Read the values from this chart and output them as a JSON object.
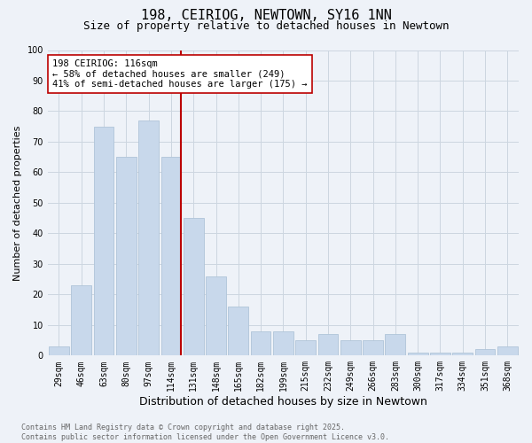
{
  "title": "198, CEIRIOG, NEWTOWN, SY16 1NN",
  "subtitle": "Size of property relative to detached houses in Newtown",
  "xlabel": "Distribution of detached houses by size in Newtown",
  "ylabel": "Number of detached properties",
  "categories": [
    "29sqm",
    "46sqm",
    "63sqm",
    "80sqm",
    "97sqm",
    "114sqm",
    "131sqm",
    "148sqm",
    "165sqm",
    "182sqm",
    "199sqm",
    "215sqm",
    "232sqm",
    "249sqm",
    "266sqm",
    "283sqm",
    "300sqm",
    "317sqm",
    "334sqm",
    "351sqm",
    "368sqm"
  ],
  "values": [
    3,
    23,
    75,
    65,
    77,
    65,
    45,
    26,
    16,
    8,
    8,
    5,
    7,
    5,
    5,
    7,
    1,
    1,
    1,
    2,
    3
  ],
  "bar_color": "#c8d8eb",
  "bar_edge_color": "#b0c4d8",
  "vline_color": "#bb0000",
  "vline_x": 5.43,
  "annotation_text": "198 CEIRIOG: 116sqm\n← 58% of detached houses are smaller (249)\n41% of semi-detached houses are larger (175) →",
  "annotation_box_facecolor": "#ffffff",
  "annotation_box_edgecolor": "#bb0000",
  "ylim": [
    0,
    100
  ],
  "yticks": [
    0,
    10,
    20,
    30,
    40,
    50,
    60,
    70,
    80,
    90,
    100
  ],
  "grid_color": "#ccd6e0",
  "background_color": "#eef2f8",
  "footer_text": "Contains HM Land Registry data © Crown copyright and database right 2025.\nContains public sector information licensed under the Open Government Licence v3.0.",
  "title_fontsize": 11,
  "subtitle_fontsize": 9,
  "xlabel_fontsize": 9,
  "ylabel_fontsize": 8,
  "tick_fontsize": 7,
  "annotation_fontsize": 7.5,
  "footer_fontsize": 6
}
